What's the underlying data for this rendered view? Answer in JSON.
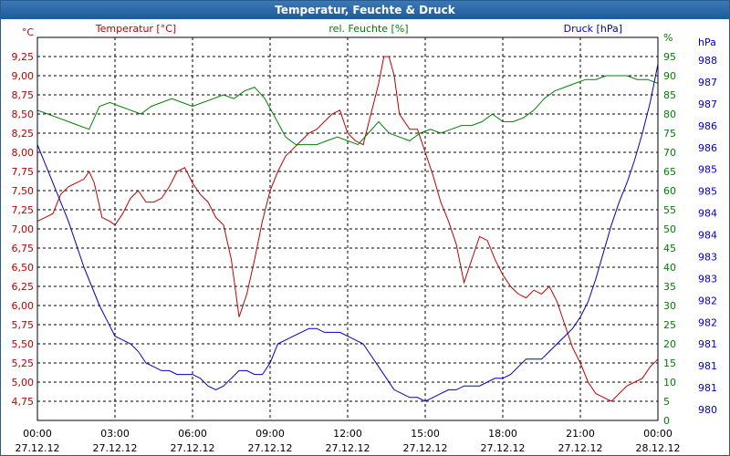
{
  "window": {
    "title": "Temperatur, Feuchte & Druck"
  },
  "colors": {
    "temperature": "#c00000",
    "humidity": "#008000",
    "pressure": "#0000c0",
    "grid": "#000000",
    "axis": "#000000"
  },
  "chart_data": {
    "type": "line",
    "title": "Temperatur, Feuchte & Druck",
    "grid": true,
    "x_ticks": [
      {
        "time": "00:00",
        "date": "27.12.12"
      },
      {
        "time": "03:00",
        "date": "27.12.12"
      },
      {
        "time": "06:00",
        "date": "27.12.12"
      },
      {
        "time": "09:00",
        "date": "27.12.12"
      },
      {
        "time": "12:00",
        "date": "27.12.12"
      },
      {
        "time": "15:00",
        "date": "27.12.12"
      },
      {
        "time": "18:00",
        "date": "27.12.12"
      },
      {
        "time": "21:00",
        "date": "27.12.12"
      },
      {
        "time": "00:00",
        "date": "28.12.12"
      }
    ],
    "xlim_hours": [
      0,
      24
    ],
    "axes": {
      "temperature": {
        "label": "Temperatur [°C]",
        "unit": "°C",
        "range": [
          4.5,
          9.5
        ],
        "ticks": [
          "4,75",
          "5,00",
          "5,25",
          "5,50",
          "5,75",
          "6,00",
          "6,25",
          "6,50",
          "6,75",
          "7,00",
          "7,25",
          "7,50",
          "7,75",
          "8,00",
          "8,25",
          "8,50",
          "8,75",
          "9,00",
          "9,25"
        ]
      },
      "humidity": {
        "label": "rel. Feuchte [%]",
        "unit": "%",
        "range": [
          0,
          100
        ],
        "ticks": [
          "0",
          "5",
          "10",
          "15",
          "20",
          "25",
          "30",
          "35",
          "40",
          "45",
          "50",
          "55",
          "60",
          "65",
          "70",
          "75",
          "80",
          "85",
          "90",
          "95"
        ]
      },
      "pressure": {
        "label": "Druck [hPa]",
        "unit": "hPa",
        "ticks": [
          "980",
          "981",
          "981",
          "981",
          "982",
          "982",
          "983",
          "983",
          "984",
          "984",
          "985",
          "985",
          "986",
          "986",
          "987",
          "987",
          "988"
        ]
      }
    },
    "series": [
      {
        "name": "Temperatur [°C]",
        "axis": "temperature",
        "x": [
          0,
          0.3,
          0.6,
          0.9,
          1.2,
          1.5,
          1.8,
          2.0,
          2.2,
          2.5,
          2.8,
          3.0,
          3.3,
          3.6,
          3.9,
          4.2,
          4.5,
          4.8,
          5.1,
          5.4,
          5.7,
          6.0,
          6.3,
          6.6,
          6.9,
          7.2,
          7.5,
          7.8,
          8.1,
          8.4,
          8.7,
          9.0,
          9.3,
          9.6,
          9.9,
          10.2,
          10.5,
          10.8,
          11.1,
          11.4,
          11.7,
          12.0,
          12.3,
          12.6,
          12.9,
          13.2,
          13.4,
          13.6,
          13.8,
          14.0,
          14.2,
          14.4,
          14.7,
          15.0,
          15.3,
          15.6,
          15.9,
          16.2,
          16.5,
          16.8,
          17.1,
          17.4,
          17.7,
          18.0,
          18.3,
          18.6,
          18.9,
          19.2,
          19.5,
          19.8,
          20.1,
          20.4,
          20.7,
          21.0,
          21.3,
          21.6,
          21.9,
          22.2,
          22.5,
          22.8,
          23.1,
          23.4,
          23.7,
          24.0
        ],
        "values": [
          7.1,
          7.15,
          7.2,
          7.45,
          7.55,
          7.6,
          7.65,
          7.75,
          7.6,
          7.15,
          7.1,
          7.05,
          7.2,
          7.4,
          7.5,
          7.35,
          7.35,
          7.4,
          7.55,
          7.75,
          7.8,
          7.6,
          7.45,
          7.35,
          7.15,
          7.05,
          6.6,
          5.85,
          6.15,
          6.6,
          7.1,
          7.5,
          7.75,
          7.95,
          8.05,
          8.15,
          8.25,
          8.3,
          8.4,
          8.5,
          8.55,
          8.25,
          8.15,
          8.1,
          8.5,
          8.9,
          9.25,
          9.25,
          9.0,
          8.5,
          8.4,
          8.3,
          8.3,
          8.0,
          7.7,
          7.35,
          7.1,
          6.8,
          6.3,
          6.6,
          6.9,
          6.85,
          6.6,
          6.4,
          6.25,
          6.15,
          6.1,
          6.2,
          6.15,
          6.25,
          6.05,
          5.75,
          5.45,
          5.25,
          5.0,
          4.85,
          4.8,
          4.75,
          4.85,
          4.95,
          5.0,
          5.05,
          5.2,
          5.3
        ]
      },
      {
        "name": "rel. Feuchte [%]",
        "axis": "humidity",
        "x": [
          0,
          0.4,
          0.8,
          1.2,
          1.6,
          2.0,
          2.4,
          2.8,
          3.2,
          3.6,
          4.0,
          4.4,
          4.8,
          5.2,
          5.6,
          6.0,
          6.4,
          6.8,
          7.2,
          7.6,
          8.0,
          8.4,
          8.8,
          9.2,
          9.6,
          10.0,
          10.4,
          10.8,
          11.2,
          11.6,
          12.0,
          12.4,
          12.8,
          13.2,
          13.6,
          14.0,
          14.4,
          14.8,
          15.2,
          15.6,
          16.0,
          16.4,
          16.8,
          17.2,
          17.6,
          18.0,
          18.4,
          18.8,
          19.2,
          19.6,
          20.0,
          20.4,
          20.8,
          21.2,
          21.6,
          22.0,
          22.4,
          22.8,
          23.2,
          23.6,
          24.0
        ],
        "values": [
          81,
          80,
          79,
          78,
          77,
          76,
          82,
          83,
          82,
          81,
          80,
          82,
          83,
          84,
          83,
          82,
          83,
          84,
          85,
          84,
          86,
          87,
          84,
          79,
          74,
          72,
          72,
          72,
          73,
          74,
          73,
          72,
          75,
          78,
          75,
          74,
          73,
          75,
          76,
          75,
          76,
          77,
          77,
          78,
          80,
          78,
          78,
          79,
          81,
          84,
          86,
          87,
          88,
          89,
          89,
          90,
          90,
          90,
          89,
          89,
          88
        ]
      },
      {
        "name": "Druck [hPa]",
        "axis": "pressure",
        "x": [
          0,
          0.3,
          0.6,
          0.9,
          1.2,
          1.5,
          1.8,
          2.1,
          2.4,
          2.7,
          3.0,
          3.3,
          3.6,
          3.9,
          4.2,
          4.5,
          4.8,
          5.1,
          5.4,
          5.7,
          6.0,
          6.3,
          6.6,
          6.9,
          7.2,
          7.5,
          7.8,
          8.1,
          8.4,
          8.7,
          9.0,
          9.3,
          9.6,
          9.9,
          10.2,
          10.5,
          10.8,
          11.1,
          11.4,
          11.7,
          12.0,
          12.3,
          12.6,
          12.9,
          13.2,
          13.5,
          13.8,
          14.1,
          14.4,
          14.7,
          15.0,
          15.3,
          15.6,
          15.9,
          16.2,
          16.5,
          16.8,
          17.1,
          17.4,
          17.7,
          18.0,
          18.3,
          18.6,
          18.9,
          19.2,
          19.5,
          19.8,
          20.1,
          20.4,
          20.7,
          21.0,
          21.3,
          21.6,
          21.9,
          22.2,
          22.5,
          22.8,
          23.1,
          23.4,
          23.7,
          24.0
        ],
        "values": [
          72,
          67,
          62,
          57,
          52,
          46,
          40,
          35,
          30,
          26,
          22,
          21,
          20,
          18,
          15,
          14,
          13,
          13,
          12,
          12,
          12,
          11,
          9,
          8,
          9,
          11,
          13,
          13,
          12,
          12,
          15,
          20,
          21,
          22,
          23,
          24,
          24,
          23,
          23,
          23,
          22,
          21,
          20,
          17,
          14,
          11,
          8,
          7,
          6,
          6,
          5,
          6,
          7,
          8,
          8,
          9,
          9,
          9,
          10,
          11,
          11,
          12,
          14,
          16,
          16,
          16,
          18,
          20,
          22,
          24,
          27,
          31,
          37,
          44,
          51,
          57,
          62,
          68,
          75,
          83,
          93
        ]
      }
    ]
  }
}
